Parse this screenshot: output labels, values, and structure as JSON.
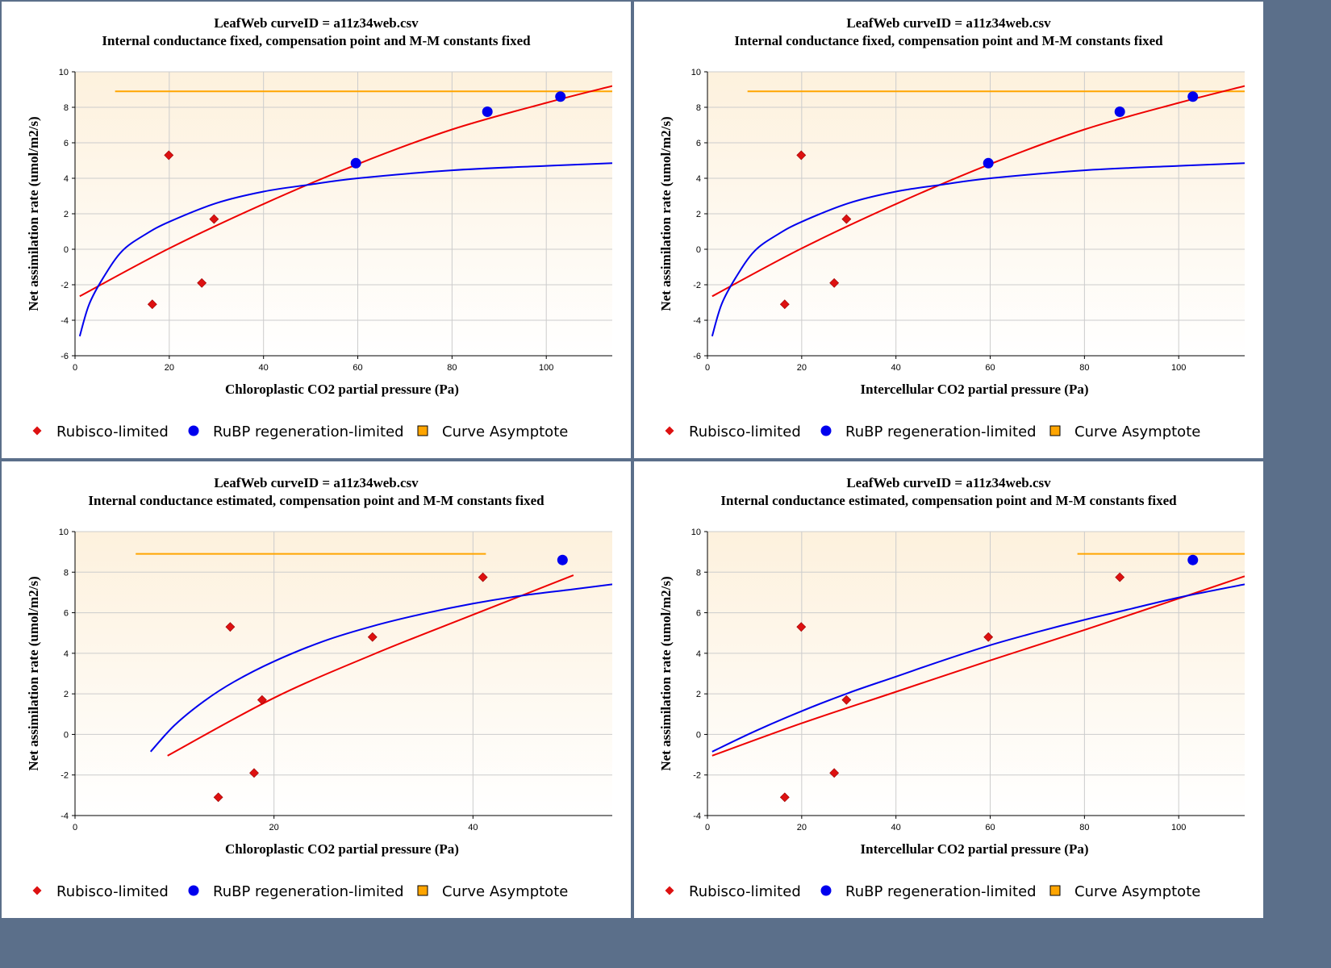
{
  "chart_data": [
    {
      "type": "scatter",
      "title": "LeafWeb curveID = a11z34web.csv",
      "subtitle": "Internal conductance fixed, compensation point and M-M constants fixed",
      "xlabel": "Chloroplastic CO2 partial pressure (Pa)",
      "ylabel": "Net assimilation rate (umol/m2/s)",
      "xlim": [
        0,
        114
      ],
      "ylim": [
        -6,
        10
      ],
      "xticks": [
        0,
        20,
        40,
        60,
        80,
        100
      ],
      "yticks": [
        -6,
        -4,
        -2,
        0,
        2,
        4,
        6,
        8,
        10
      ],
      "grid": true,
      "legend_position": "bottom",
      "series": [
        {
          "name": "Rubisco-limited",
          "kind": "points",
          "marker": "diamond",
          "color": "#dd1111",
          "x": [
            16.4,
            19.9,
            26.9,
            29.5
          ],
          "y": [
            -3.1,
            5.3,
            -1.9,
            1.7
          ]
        },
        {
          "name": "RuBP regeneration-limited",
          "kind": "points",
          "marker": "circle",
          "color": "#0000ee",
          "x": [
            59.6,
            87.5,
            103.0
          ],
          "y": [
            4.85,
            7.75,
            8.6
          ]
        },
        {
          "name": "Curve Asymptote",
          "kind": "line",
          "color": "#ffa500",
          "x": [
            8.5,
            114
          ],
          "y": [
            8.9,
            8.9
          ]
        },
        {
          "kind": "line",
          "color": "#ee0000",
          "x": [
            1,
            20,
            40,
            60,
            80,
            100,
            114
          ],
          "y": [
            -2.65,
            0.05,
            2.55,
            4.8,
            6.75,
            8.25,
            9.2
          ]
        },
        {
          "kind": "line",
          "color": "#0000ee",
          "x": [
            1,
            3,
            6,
            10,
            15,
            20,
            30,
            40,
            50,
            60,
            80,
            100,
            114
          ],
          "y": [
            -4.9,
            -3.1,
            -1.6,
            -0.1,
            0.85,
            1.55,
            2.6,
            3.25,
            3.65,
            4.0,
            4.45,
            4.7,
            4.85
          ]
        }
      ]
    },
    {
      "type": "scatter",
      "title": "LeafWeb curveID = a11z34web.csv",
      "subtitle": "Internal conductance fixed, compensation point and M-M constants fixed",
      "xlabel": "Intercellular CO2 partial pressure (Pa)",
      "ylabel": "Net assimilation rate (umol/m2/s)",
      "xlim": [
        0,
        114
      ],
      "ylim": [
        -6,
        10
      ],
      "xticks": [
        0,
        20,
        40,
        60,
        80,
        100
      ],
      "yticks": [
        -6,
        -4,
        -2,
        0,
        2,
        4,
        6,
        8,
        10
      ],
      "grid": true,
      "legend_position": "bottom",
      "series": [
        {
          "name": "Rubisco-limited",
          "kind": "points",
          "marker": "diamond",
          "color": "#dd1111",
          "x": [
            16.4,
            19.9,
            26.9,
            29.5
          ],
          "y": [
            -3.1,
            5.3,
            -1.9,
            1.7
          ]
        },
        {
          "name": "RuBP regeneration-limited",
          "kind": "points",
          "marker": "circle",
          "color": "#0000ee",
          "x": [
            59.6,
            87.5,
            103.0
          ],
          "y": [
            4.85,
            7.75,
            8.6
          ]
        },
        {
          "name": "Curve Asymptote",
          "kind": "line",
          "color": "#ffa500",
          "x": [
            8.5,
            114
          ],
          "y": [
            8.9,
            8.9
          ]
        },
        {
          "kind": "line",
          "color": "#ee0000",
          "x": [
            1,
            20,
            40,
            60,
            80,
            100,
            114
          ],
          "y": [
            -2.65,
            0.05,
            2.55,
            4.8,
            6.75,
            8.25,
            9.2
          ]
        },
        {
          "kind": "line",
          "color": "#0000ee",
          "x": [
            1,
            3,
            6,
            10,
            15,
            20,
            30,
            40,
            50,
            60,
            80,
            100,
            114
          ],
          "y": [
            -4.9,
            -3.1,
            -1.6,
            -0.1,
            0.85,
            1.55,
            2.6,
            3.25,
            3.65,
            4.0,
            4.45,
            4.7,
            4.85
          ]
        }
      ]
    },
    {
      "type": "scatter",
      "title": "LeafWeb curveID = a11z34web.csv",
      "subtitle": "Internal conductance estimated, compensation point and M-M constants fixed",
      "xlabel": "Chloroplastic CO2 partial pressure (Pa)",
      "ylabel": "Net assimilation rate (umol/m2/s)",
      "xlim": [
        0,
        54
      ],
      "ylim": [
        -4,
        10
      ],
      "xticks": [
        0,
        20,
        40
      ],
      "yticks": [
        -4,
        -2,
        0,
        2,
        4,
        6,
        8,
        10
      ],
      "grid": true,
      "legend_position": "bottom",
      "series": [
        {
          "name": "Rubisco-limited",
          "kind": "points",
          "marker": "diamond",
          "color": "#dd1111",
          "x": [
            14.4,
            15.6,
            18.0,
            18.8,
            29.9,
            41.0
          ],
          "y": [
            -3.1,
            5.3,
            -1.9,
            1.7,
            4.8,
            7.75
          ]
        },
        {
          "name": "RuBP regeneration-limited",
          "kind": "points",
          "marker": "circle",
          "color": "#0000ee",
          "x": [
            49.0
          ],
          "y": [
            8.6
          ]
        },
        {
          "name": "Curve Asymptote",
          "kind": "line",
          "color": "#ffa500",
          "x": [
            6.1,
            41.3
          ],
          "y": [
            8.9,
            8.9
          ]
        },
        {
          "kind": "line",
          "color": "#ee0000",
          "x": [
            9.3,
            20,
            30,
            40,
            50.1
          ],
          "y": [
            -1.05,
            1.8,
            3.95,
            5.9,
            7.85
          ]
        },
        {
          "kind": "line",
          "color": "#0000ee",
          "x": [
            7.6,
            10,
            13,
            16,
            20,
            25,
            30,
            35,
            40,
            45,
            50,
            54
          ],
          "y": [
            -0.85,
            0.45,
            1.65,
            2.6,
            3.6,
            4.6,
            5.35,
            5.95,
            6.45,
            6.85,
            7.15,
            7.4
          ]
        }
      ]
    },
    {
      "type": "scatter",
      "title": "LeafWeb curveID = a11z34web.csv",
      "subtitle": "Internal conductance estimated, compensation point and M-M constants fixed",
      "xlabel": "Intercellular CO2 partial pressure (Pa)",
      "ylabel": "Net assimilation rate (umol/m2/s)",
      "xlim": [
        0,
        114
      ],
      "ylim": [
        -4,
        10
      ],
      "xticks": [
        0,
        20,
        40,
        60,
        80,
        100
      ],
      "yticks": [
        -4,
        -2,
        0,
        2,
        4,
        6,
        8,
        10
      ],
      "grid": true,
      "legend_position": "bottom",
      "series": [
        {
          "name": "Rubisco-limited",
          "kind": "points",
          "marker": "diamond",
          "color": "#dd1111",
          "x": [
            16.4,
            19.9,
            26.9,
            29.5,
            59.6,
            87.5
          ],
          "y": [
            -3.1,
            5.3,
            -1.9,
            1.7,
            4.8,
            7.75
          ]
        },
        {
          "name": "RuBP regeneration-limited",
          "kind": "points",
          "marker": "circle",
          "color": "#0000ee",
          "x": [
            103.0
          ],
          "y": [
            8.6
          ]
        },
        {
          "name": "Curve Asymptote",
          "kind": "line",
          "color": "#ffa500",
          "x": [
            78.5,
            114
          ],
          "y": [
            8.9,
            8.9
          ]
        },
        {
          "kind": "line",
          "color": "#ee0000",
          "x": [
            1,
            20,
            40,
            60,
            80,
            100,
            114
          ],
          "y": [
            -1.05,
            0.55,
            2.1,
            3.65,
            5.15,
            6.7,
            7.8
          ]
        },
        {
          "kind": "line",
          "color": "#0000ee",
          "x": [
            1,
            10,
            20,
            30,
            40,
            50,
            60,
            70,
            80,
            90,
            100,
            114
          ],
          "y": [
            -0.85,
            0.15,
            1.15,
            2.05,
            2.85,
            3.65,
            4.4,
            5.05,
            5.65,
            6.2,
            6.75,
            7.4
          ]
        }
      ]
    }
  ]
}
